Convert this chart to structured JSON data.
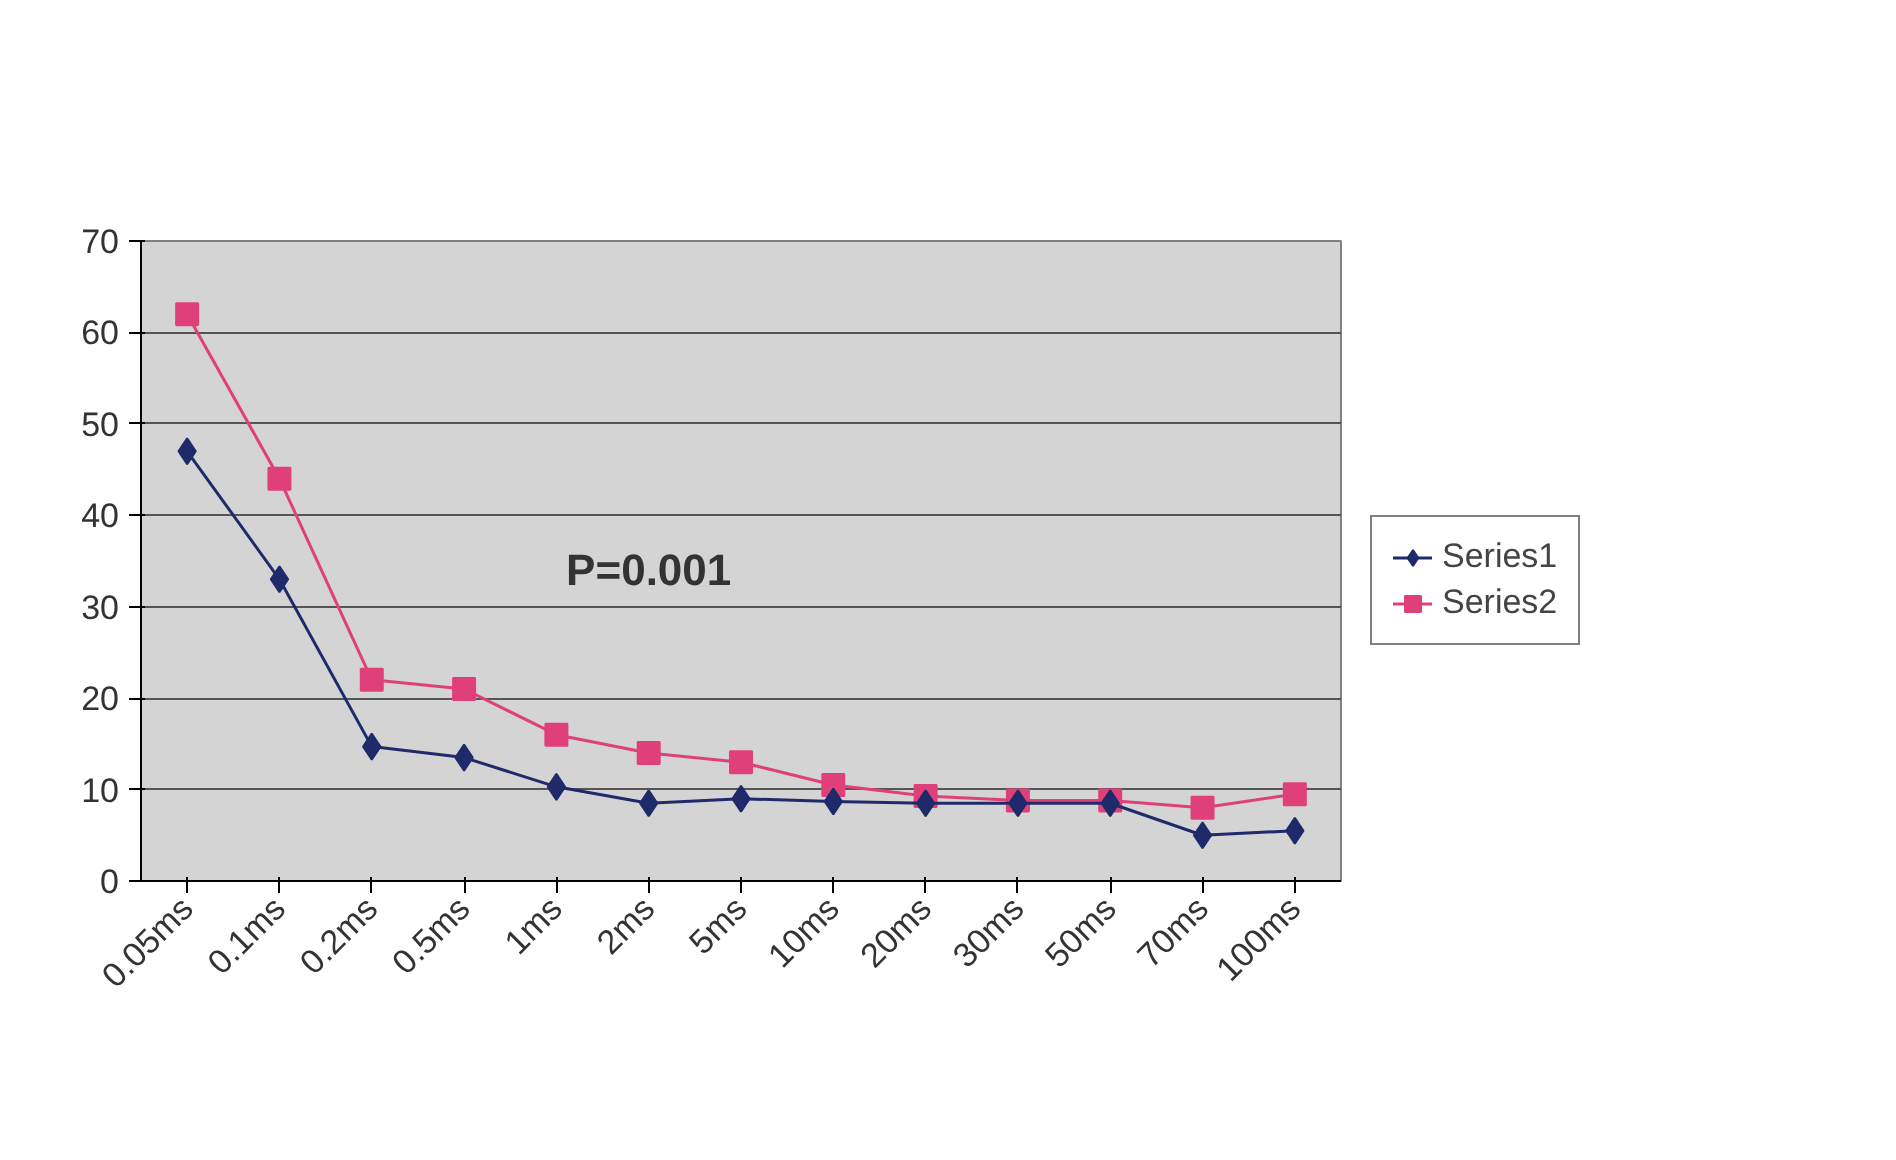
{
  "chart_data": {
    "type": "line",
    "categories": [
      "0.05ms",
      "0.1ms",
      "0.2ms",
      "0.5ms",
      "1ms",
      "2ms",
      "5ms",
      "10ms",
      "20ms",
      "30ms",
      "50ms",
      "70ms",
      "100ms"
    ],
    "series": [
      {
        "name": "Series1",
        "color": "#1f2a6b",
        "marker": "diamond",
        "values": [
          47,
          33,
          14.7,
          13.5,
          10.3,
          8.5,
          9,
          8.7,
          8.5,
          8.5,
          8.5,
          5,
          5.5
        ]
      },
      {
        "name": "Series2",
        "color": "#e0407a",
        "marker": "square",
        "values": [
          62,
          44,
          22,
          21,
          16,
          14,
          13,
          10.5,
          9.3,
          8.8,
          8.8,
          8,
          9.5
        ]
      }
    ],
    "ylim": [
      0,
      70
    ],
    "yticks": [
      0,
      10,
      20,
      30,
      40,
      50,
      60,
      70
    ],
    "grid": "y",
    "legend": "right",
    "annotations": [
      "P=0.001"
    ]
  }
}
